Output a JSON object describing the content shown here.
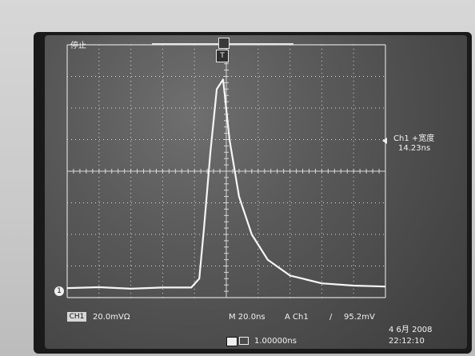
{
  "status": {
    "run_state": "停止"
  },
  "trigger": {
    "position_marker": "T",
    "bar_marker": "U"
  },
  "measurement": {
    "title": "Ch1 +宽度",
    "value": "14.23ns"
  },
  "readout": {
    "channel_badge": "CH1",
    "volts_div": "20.0mVΩ",
    "timebase": "M 20.0ns",
    "trigger_channel": "A  Ch1",
    "trigger_slope_symbol": "/",
    "trigger_level": "95.2mV",
    "date": "4 6月  2008",
    "time": "22:12:10",
    "record_time": "1.00000ns"
  },
  "ground": {
    "label": "1"
  },
  "colors": {
    "trace": "#f6f6f6",
    "grid": "#d8d8d8",
    "screen": "#4a4a4a"
  },
  "chart_data": {
    "type": "line",
    "x_divisions": 10,
    "y_divisions": 8,
    "series": [
      {
        "x": [
          0,
          1,
          2,
          3,
          3.9,
          4.15,
          4.3,
          4.5,
          4.7,
          4.9,
          5.1,
          5.4,
          5.8,
          6.3,
          7.0,
          8.0,
          9.0,
          10.0
        ],
        "y": [
          0.3,
          0.33,
          0.28,
          0.32,
          0.32,
          0.6,
          2.2,
          4.6,
          6.6,
          6.9,
          5.0,
          3.2,
          2.0,
          1.2,
          0.7,
          0.45,
          0.38,
          0.35
        ]
      }
    ],
    "grid": true
  }
}
